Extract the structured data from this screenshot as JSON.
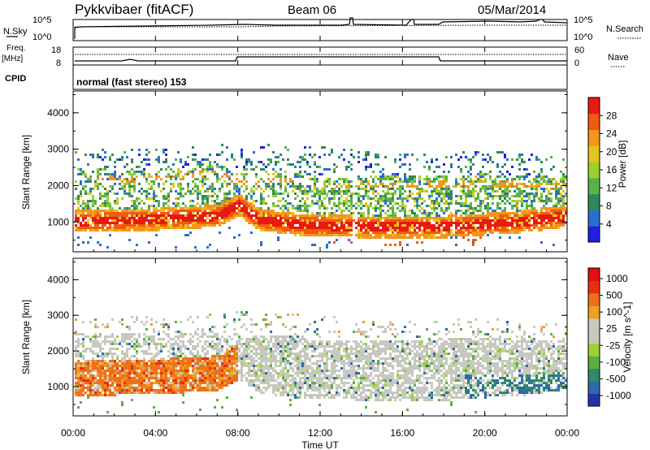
{
  "header": {
    "radar": "Pykkvibaer (fitACF)",
    "beam": "Beam 06",
    "date": "05/Mar/2014",
    "cpid_text": "normal (fast stereo) 153"
  },
  "side_labels": {
    "nsky": "N.Sky",
    "freq": "Freq.",
    "mhz": "[MHz]",
    "cpid": "CPID",
    "nsearch": "N.Search",
    "nave": "Nave"
  },
  "noise_axis": {
    "left_ticks": [
      "10^5",
      "10^0"
    ],
    "right_ticks": [
      "10^5",
      "10^0"
    ]
  },
  "freq_axis": {
    "left_ticks": [
      "18",
      "8"
    ],
    "right_ticks": [
      "60",
      "0"
    ]
  },
  "chart_data": [
    {
      "type": "heatmap",
      "title": "",
      "quantity": "Power",
      "ylabel": "Slant Range [km]",
      "xlabel": "",
      "ylim": [
        180,
        4600
      ],
      "yticks": [
        1000,
        2000,
        3000,
        4000
      ],
      "colorbar": {
        "label": "Power [dB]",
        "ticks": [
          4,
          8,
          12,
          16,
          20,
          24,
          28
        ],
        "range": [
          0,
          32
        ],
        "colors": [
          "#1f1fe6",
          "#2a6fd0",
          "#2f8a5a",
          "#5ab04a",
          "#9bd12f",
          "#e6c41c",
          "#f5951a",
          "#f25a12",
          "#e81a10"
        ]
      }
    },
    {
      "type": "heatmap",
      "title": "",
      "quantity": "Velocity",
      "ylabel": "Slant Range [km]",
      "xlabel": "Time UT",
      "ylim": [
        180,
        4600
      ],
      "yticks": [
        1000,
        2000,
        3000,
        4000
      ],
      "colorbar": {
        "label": "Velocity [m s^-1]",
        "ticks": [
          "1000",
          "500",
          "100",
          "25",
          "-25",
          "-100",
          "-500",
          "-1000"
        ],
        "colors": [
          "#2233aa",
          "#2d6aa8",
          "#2e8a6a",
          "#5bb040",
          "#9bd134",
          "#c8c8c0",
          "#c8c8c0",
          "#f0a020",
          "#f07018",
          "#e83010",
          "#e01010"
        ]
      }
    }
  ],
  "time_axis": {
    "labels": [
      "00:00",
      "04:00",
      "08:00",
      "12:00",
      "16:00",
      "20:00",
      "00:00"
    ],
    "hours": [
      0,
      4,
      8,
      12,
      16,
      20,
      24
    ]
  }
}
